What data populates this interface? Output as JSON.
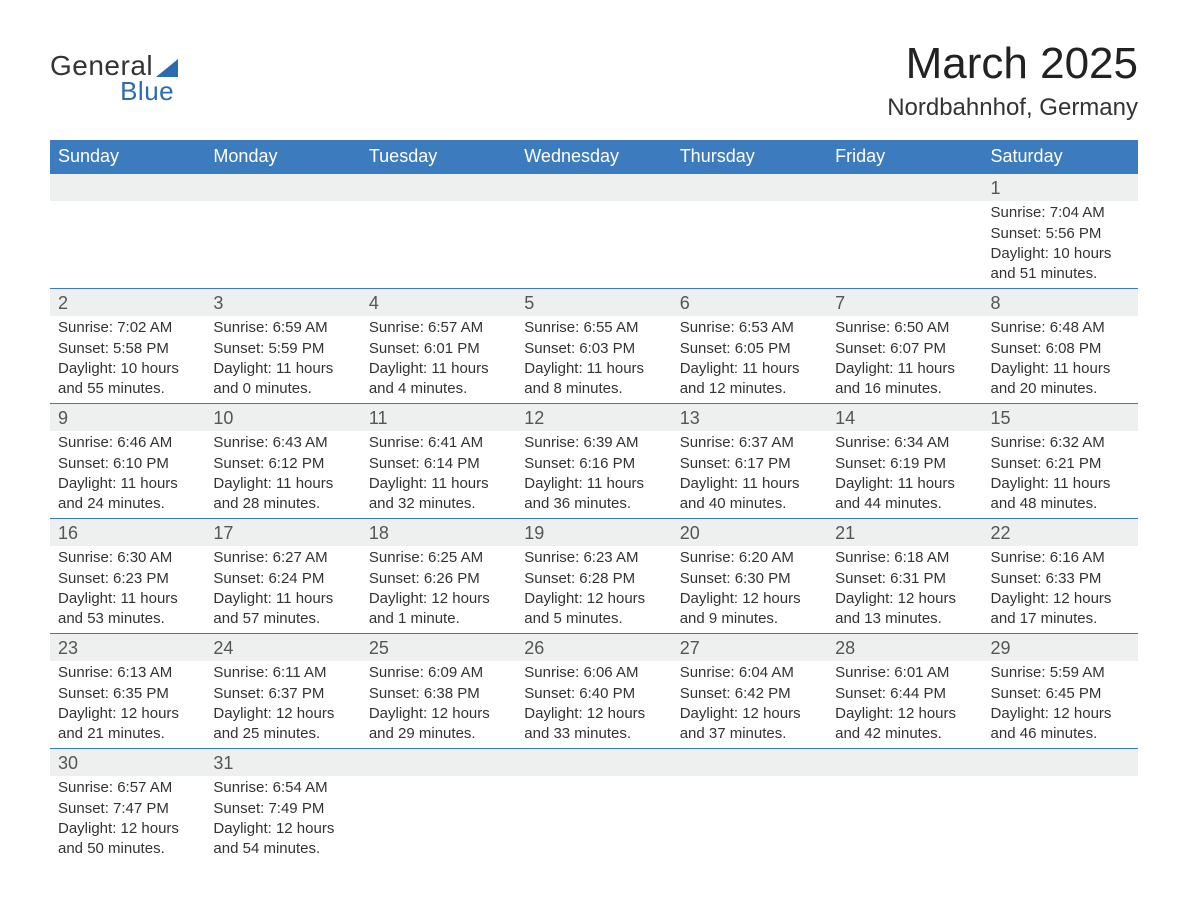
{
  "logo": {
    "word1": "General",
    "word2": "Blue"
  },
  "title": "March 2025",
  "location": "Nordbahnhof, Germany",
  "colors": {
    "header_bg": "#3d7bbf",
    "header_text": "#ffffff",
    "daynum_bg": "#eef0f0",
    "border": "#3d7bbf",
    "logo_blue": "#2d6bb0",
    "text": "#333333"
  },
  "typography": {
    "title_fontsize": 44,
    "location_fontsize": 24,
    "header_fontsize": 18,
    "daynum_fontsize": 18,
    "body_fontsize": 15
  },
  "weekdays": [
    "Sunday",
    "Monday",
    "Tuesday",
    "Wednesday",
    "Thursday",
    "Friday",
    "Saturday"
  ],
  "weeks": [
    [
      null,
      null,
      null,
      null,
      null,
      null,
      {
        "d": "1",
        "sr": "Sunrise: 7:04 AM",
        "ss": "Sunset: 5:56 PM",
        "dl1": "Daylight: 10 hours",
        "dl2": "and 51 minutes."
      }
    ],
    [
      {
        "d": "2",
        "sr": "Sunrise: 7:02 AM",
        "ss": "Sunset: 5:58 PM",
        "dl1": "Daylight: 10 hours",
        "dl2": "and 55 minutes."
      },
      {
        "d": "3",
        "sr": "Sunrise: 6:59 AM",
        "ss": "Sunset: 5:59 PM",
        "dl1": "Daylight: 11 hours",
        "dl2": "and 0 minutes."
      },
      {
        "d": "4",
        "sr": "Sunrise: 6:57 AM",
        "ss": "Sunset: 6:01 PM",
        "dl1": "Daylight: 11 hours",
        "dl2": "and 4 minutes."
      },
      {
        "d": "5",
        "sr": "Sunrise: 6:55 AM",
        "ss": "Sunset: 6:03 PM",
        "dl1": "Daylight: 11 hours",
        "dl2": "and 8 minutes."
      },
      {
        "d": "6",
        "sr": "Sunrise: 6:53 AM",
        "ss": "Sunset: 6:05 PM",
        "dl1": "Daylight: 11 hours",
        "dl2": "and 12 minutes."
      },
      {
        "d": "7",
        "sr": "Sunrise: 6:50 AM",
        "ss": "Sunset: 6:07 PM",
        "dl1": "Daylight: 11 hours",
        "dl2": "and 16 minutes."
      },
      {
        "d": "8",
        "sr": "Sunrise: 6:48 AM",
        "ss": "Sunset: 6:08 PM",
        "dl1": "Daylight: 11 hours",
        "dl2": "and 20 minutes."
      }
    ],
    [
      {
        "d": "9",
        "sr": "Sunrise: 6:46 AM",
        "ss": "Sunset: 6:10 PM",
        "dl1": "Daylight: 11 hours",
        "dl2": "and 24 minutes."
      },
      {
        "d": "10",
        "sr": "Sunrise: 6:43 AM",
        "ss": "Sunset: 6:12 PM",
        "dl1": "Daylight: 11 hours",
        "dl2": "and 28 minutes."
      },
      {
        "d": "11",
        "sr": "Sunrise: 6:41 AM",
        "ss": "Sunset: 6:14 PM",
        "dl1": "Daylight: 11 hours",
        "dl2": "and 32 minutes."
      },
      {
        "d": "12",
        "sr": "Sunrise: 6:39 AM",
        "ss": "Sunset: 6:16 PM",
        "dl1": "Daylight: 11 hours",
        "dl2": "and 36 minutes."
      },
      {
        "d": "13",
        "sr": "Sunrise: 6:37 AM",
        "ss": "Sunset: 6:17 PM",
        "dl1": "Daylight: 11 hours",
        "dl2": "and 40 minutes."
      },
      {
        "d": "14",
        "sr": "Sunrise: 6:34 AM",
        "ss": "Sunset: 6:19 PM",
        "dl1": "Daylight: 11 hours",
        "dl2": "and 44 minutes."
      },
      {
        "d": "15",
        "sr": "Sunrise: 6:32 AM",
        "ss": "Sunset: 6:21 PM",
        "dl1": "Daylight: 11 hours",
        "dl2": "and 48 minutes."
      }
    ],
    [
      {
        "d": "16",
        "sr": "Sunrise: 6:30 AM",
        "ss": "Sunset: 6:23 PM",
        "dl1": "Daylight: 11 hours",
        "dl2": "and 53 minutes."
      },
      {
        "d": "17",
        "sr": "Sunrise: 6:27 AM",
        "ss": "Sunset: 6:24 PM",
        "dl1": "Daylight: 11 hours",
        "dl2": "and 57 minutes."
      },
      {
        "d": "18",
        "sr": "Sunrise: 6:25 AM",
        "ss": "Sunset: 6:26 PM",
        "dl1": "Daylight: 12 hours",
        "dl2": "and 1 minute."
      },
      {
        "d": "19",
        "sr": "Sunrise: 6:23 AM",
        "ss": "Sunset: 6:28 PM",
        "dl1": "Daylight: 12 hours",
        "dl2": "and 5 minutes."
      },
      {
        "d": "20",
        "sr": "Sunrise: 6:20 AM",
        "ss": "Sunset: 6:30 PM",
        "dl1": "Daylight: 12 hours",
        "dl2": "and 9 minutes."
      },
      {
        "d": "21",
        "sr": "Sunrise: 6:18 AM",
        "ss": "Sunset: 6:31 PM",
        "dl1": "Daylight: 12 hours",
        "dl2": "and 13 minutes."
      },
      {
        "d": "22",
        "sr": "Sunrise: 6:16 AM",
        "ss": "Sunset: 6:33 PM",
        "dl1": "Daylight: 12 hours",
        "dl2": "and 17 minutes."
      }
    ],
    [
      {
        "d": "23",
        "sr": "Sunrise: 6:13 AM",
        "ss": "Sunset: 6:35 PM",
        "dl1": "Daylight: 12 hours",
        "dl2": "and 21 minutes."
      },
      {
        "d": "24",
        "sr": "Sunrise: 6:11 AM",
        "ss": "Sunset: 6:37 PM",
        "dl1": "Daylight: 12 hours",
        "dl2": "and 25 minutes."
      },
      {
        "d": "25",
        "sr": "Sunrise: 6:09 AM",
        "ss": "Sunset: 6:38 PM",
        "dl1": "Daylight: 12 hours",
        "dl2": "and 29 minutes."
      },
      {
        "d": "26",
        "sr": "Sunrise: 6:06 AM",
        "ss": "Sunset: 6:40 PM",
        "dl1": "Daylight: 12 hours",
        "dl2": "and 33 minutes."
      },
      {
        "d": "27",
        "sr": "Sunrise: 6:04 AM",
        "ss": "Sunset: 6:42 PM",
        "dl1": "Daylight: 12 hours",
        "dl2": "and 37 minutes."
      },
      {
        "d": "28",
        "sr": "Sunrise: 6:01 AM",
        "ss": "Sunset: 6:44 PM",
        "dl1": "Daylight: 12 hours",
        "dl2": "and 42 minutes."
      },
      {
        "d": "29",
        "sr": "Sunrise: 5:59 AM",
        "ss": "Sunset: 6:45 PM",
        "dl1": "Daylight: 12 hours",
        "dl2": "and 46 minutes."
      }
    ],
    [
      {
        "d": "30",
        "sr": "Sunrise: 6:57 AM",
        "ss": "Sunset: 7:47 PM",
        "dl1": "Daylight: 12 hours",
        "dl2": "and 50 minutes."
      },
      {
        "d": "31",
        "sr": "Sunrise: 6:54 AM",
        "ss": "Sunset: 7:49 PM",
        "dl1": "Daylight: 12 hours",
        "dl2": "and 54 minutes."
      },
      null,
      null,
      null,
      null,
      null
    ]
  ]
}
